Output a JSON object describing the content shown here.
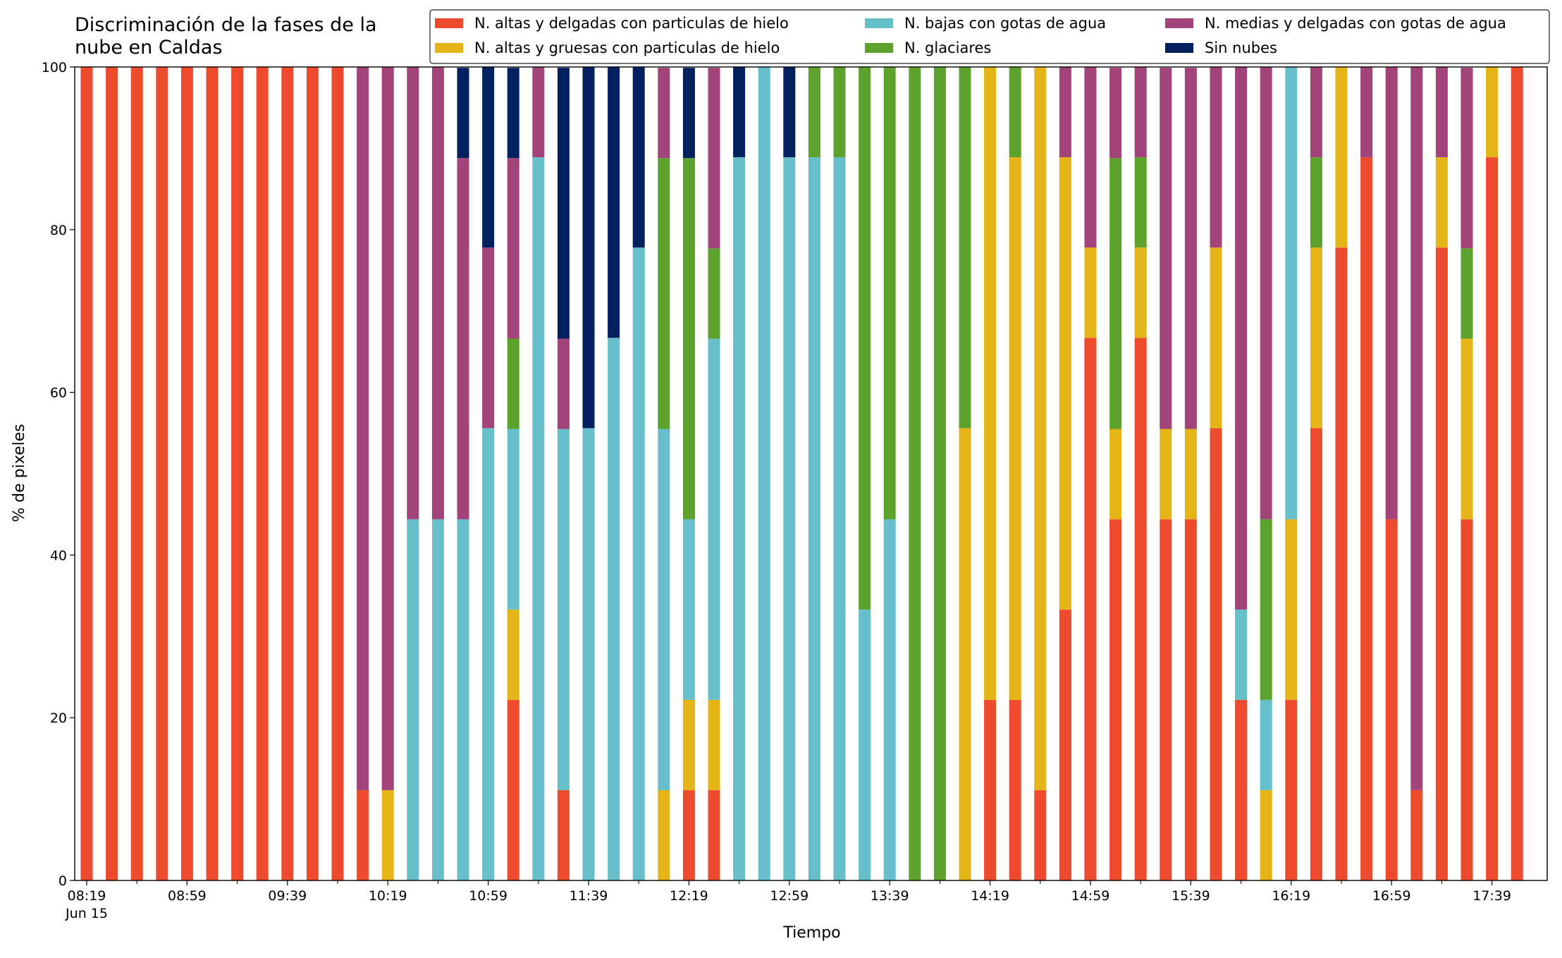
{
  "chart_data": {
    "type": "stacked_bar",
    "title": "Discriminación de la fases de la\nnube en Caldas",
    "x_label": "Tiempo",
    "y_label": "% de pixeles",
    "x_date_label": "Jun 15",
    "categories": [
      "08:19",
      null,
      null,
      null,
      "08:59",
      null,
      null,
      null,
      "09:39",
      null,
      null,
      null,
      "10:19",
      null,
      null,
      null,
      "10:59",
      null,
      null,
      null,
      "11:39",
      null,
      null,
      null,
      "12:19",
      null,
      null,
      null,
      "12:59",
      null,
      null,
      null,
      "13:39",
      null,
      null,
      null,
      "14:19",
      null,
      null,
      null,
      "14:59",
      null,
      null,
      null,
      "15:39",
      null,
      null,
      null,
      "16:19",
      null,
      null,
      null,
      "16:59",
      null,
      null,
      null,
      "17:39",
      null
    ],
    "ylim": [
      0,
      100
    ],
    "yticks": [
      0,
      20,
      40,
      60,
      80,
      100
    ],
    "legend": "top-right",
    "series": [
      {
        "name": "N. altas y delgadas con particulas de hielo",
        "color": "#ee4a2d",
        "values": [
          100,
          100,
          100,
          100,
          100,
          100,
          100,
          100,
          100,
          100,
          100,
          11.1,
          0,
          0,
          0,
          0,
          0,
          22.2,
          0,
          11.1,
          0,
          0,
          0,
          0,
          11.1,
          11.1,
          0,
          0,
          0,
          0,
          0,
          0,
          0,
          0,
          0,
          0,
          22.2,
          22.2,
          11.1,
          33.3,
          66.7,
          44.4,
          66.7,
          44.4,
          44.4,
          55.6,
          22.2,
          0,
          22.2,
          55.6,
          77.8,
          88.9,
          44.4,
          11.1,
          77.8,
          44.4,
          88.9,
          100
        ]
      },
      {
        "name": "N. altas y gruesas con particulas de hielo",
        "color": "#e5b517",
        "values": [
          0,
          0,
          0,
          0,
          0,
          0,
          0,
          0,
          0,
          0,
          0,
          0,
          11.1,
          0,
          0,
          0,
          0,
          11.1,
          0,
          0,
          0,
          0,
          0,
          11.1,
          11.1,
          11.1,
          0,
          0,
          0,
          0,
          0,
          0,
          0,
          0,
          0,
          55.6,
          77.8,
          66.7,
          88.9,
          55.6,
          11.1,
          11.1,
          11.1,
          11.1,
          11.1,
          22.2,
          0,
          11.1,
          22.2,
          22.2,
          22.2,
          0,
          0,
          0,
          11.1,
          22.2,
          11.1,
          0
        ]
      },
      {
        "name": "N. bajas con gotas de agua",
        "color": "#67bfcb",
        "values": [
          0,
          0,
          0,
          0,
          0,
          0,
          0,
          0,
          0,
          0,
          0,
          0,
          0,
          44.4,
          44.4,
          44.4,
          55.6,
          22.2,
          88.9,
          44.4,
          55.6,
          66.7,
          77.8,
          44.4,
          22.2,
          44.4,
          88.9,
          100,
          88.9,
          88.9,
          88.9,
          33.3,
          44.4,
          0,
          0,
          0,
          0,
          0,
          0,
          0,
          0,
          0,
          0,
          0,
          0,
          0,
          11.1,
          11.1,
          55.6,
          0,
          0,
          0,
          0,
          0,
          0,
          0,
          0,
          0
        ]
      },
      {
        "name": "N. glaciares",
        "color": "#5ca22c",
        "values": [
          0,
          0,
          0,
          0,
          0,
          0,
          0,
          0,
          0,
          0,
          0,
          0,
          0,
          0,
          0,
          0,
          0,
          11.1,
          0,
          0,
          0,
          0,
          0,
          33.3,
          44.4,
          11.1,
          0,
          0,
          0,
          11.1,
          11.1,
          66.7,
          55.6,
          100,
          100,
          44.4,
          0,
          11.1,
          0,
          0,
          0,
          33.3,
          11.1,
          0,
          0,
          0,
          0,
          22.2,
          0,
          11.1,
          0,
          0,
          0,
          0,
          0,
          11.1,
          0,
          0
        ]
      },
      {
        "name": "N. medias y delgadas con gotas de agua",
        "color": "#a2437a",
        "values": [
          0,
          0,
          0,
          0,
          0,
          0,
          0,
          0,
          0,
          0,
          0,
          88.9,
          88.9,
          55.6,
          55.6,
          44.4,
          22.2,
          22.2,
          11.1,
          11.1,
          0,
          0,
          0,
          11.1,
          0,
          22.2,
          0,
          0,
          0,
          0,
          0,
          0,
          0,
          0,
          0,
          0,
          0,
          0,
          0,
          11.1,
          22.2,
          11.1,
          11.1,
          44.4,
          44.4,
          22.2,
          66.7,
          55.6,
          0,
          11.1,
          0,
          11.1,
          55.6,
          88.9,
          11.1,
          22.2,
          0,
          0
        ]
      },
      {
        "name": "Sin nubes",
        "color": "#02215e",
        "values": [
          0,
          0,
          0,
          0,
          0,
          0,
          0,
          0,
          0,
          0,
          0,
          0,
          0,
          0,
          0,
          11.1,
          22.2,
          11.1,
          0,
          33.3,
          44.4,
          33.3,
          22.2,
          0,
          11.1,
          0,
          11.1,
          0,
          11.1,
          0,
          0,
          0,
          0,
          0,
          0,
          0,
          0,
          0,
          0,
          0,
          0,
          0,
          0,
          0,
          0,
          0,
          0,
          0,
          0,
          0,
          0,
          0,
          0,
          0,
          0,
          0,
          0,
          0
        ]
      }
    ]
  }
}
